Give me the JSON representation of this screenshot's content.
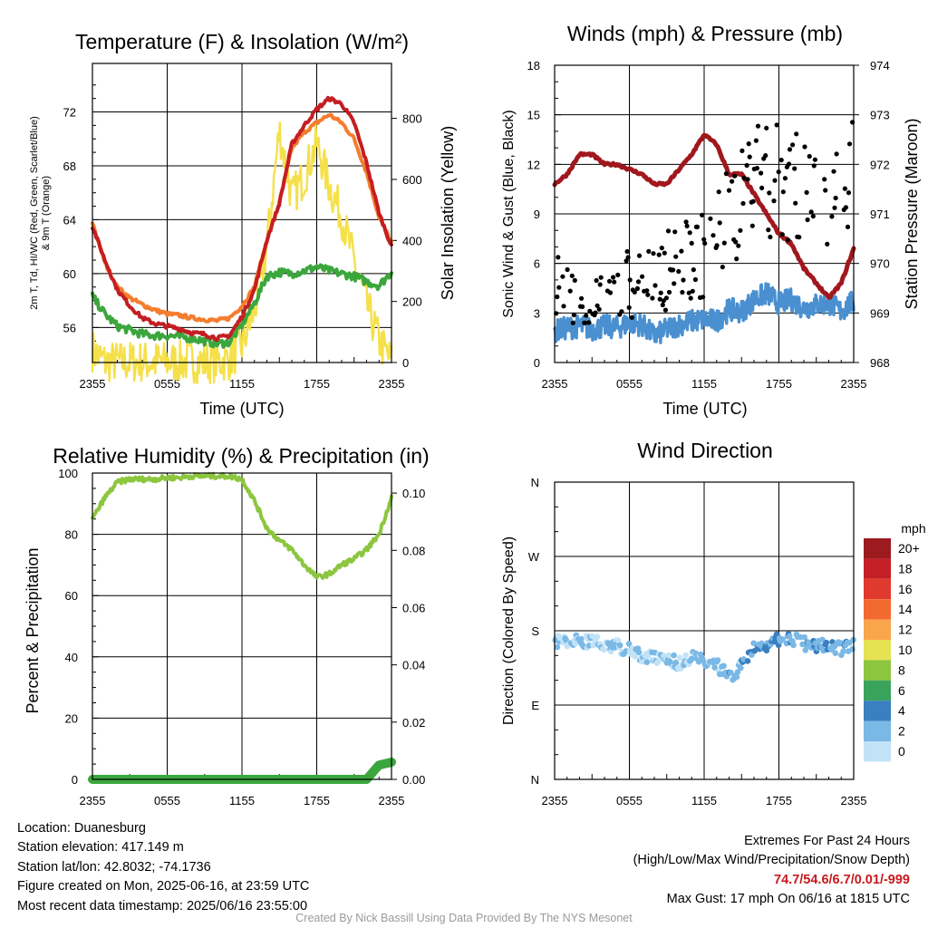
{
  "chart_data": [
    {
      "type": "line",
      "title": "Temperature (F) & Insolation (W/m²)",
      "xlabel": "Time (UTC)",
      "ylabel_lines": [
        "2m T, Td, HI/WC (Red, Green, Scarlet/Blue)",
        "& 9m T (Orange)"
      ],
      "ylabel_right": "Solar Insolation (Yellow)",
      "x_ticks": [
        "2355",
        "0555",
        "1155",
        "1755",
        "2355"
      ],
      "ylim": [
        53.4,
        75.6
      ],
      "y_ticks": [
        56,
        60,
        64,
        68,
        72
      ],
      "ylim_right": [
        0,
        980
      ],
      "y_ticks_right": [
        0,
        200,
        400,
        600,
        800
      ],
      "x_hours": [
        0,
        1,
        2,
        3,
        4,
        5,
        6,
        7,
        8,
        9,
        10,
        11,
        12,
        13,
        14,
        15,
        16,
        17,
        18,
        19,
        20,
        21,
        22,
        23,
        24
      ],
      "series": [
        {
          "key": "temperature_2m",
          "color": "#c41e22",
          "values": [
            63.5,
            61.0,
            58.8,
            57.6,
            56.7,
            56.3,
            56.1,
            55.9,
            55.6,
            55.5,
            55.2,
            55.4,
            56.8,
            58.8,
            62.5,
            65.2,
            69.6,
            71.0,
            72.2,
            73.0,
            72.6,
            71.2,
            68.2,
            64.5,
            62.0
          ]
        },
        {
          "key": "temperature_9m",
          "color": "#f47d2e",
          "values": [
            63.8,
            60.8,
            59.0,
            58.2,
            57.7,
            57.3,
            57.0,
            56.9,
            56.7,
            56.6,
            56.5,
            56.7,
            57.6,
            59.0,
            62.5,
            65.2,
            69.3,
            70.5,
            71.2,
            71.8,
            71.2,
            70.0,
            67.5,
            64.2,
            62.3
          ]
        },
        {
          "key": "dewpoint_2m",
          "color": "#3ba63c",
          "values": [
            58.3,
            57.0,
            56.1,
            55.8,
            55.5,
            55.4,
            55.4,
            55.3,
            55.2,
            55.0,
            54.8,
            54.9,
            56.2,
            57.8,
            59.8,
            60.1,
            60.0,
            60.2,
            60.5,
            60.2,
            60.0,
            59.8,
            59.4,
            59.1,
            60.1
          ]
        },
        {
          "key": "solar_insolation",
          "color": "#f5e04a",
          "axis": "right",
          "values": [
            40,
            2,
            2,
            2,
            2,
            2,
            2,
            2,
            2,
            2,
            2,
            10,
            55,
            170,
            380,
            760,
            540,
            610,
            720,
            580,
            480,
            330,
            190,
            70,
            2
          ]
        }
      ]
    },
    {
      "type": "scatter",
      "title": "Winds (mph) & Pressure (mb)",
      "xlabel": "Time (UTC)",
      "ylabel": "Sonic Wind & Gust (Blue, Black)",
      "ylabel_right": "Station Pressure (Maroon)",
      "x_ticks": [
        "2355",
        "0555",
        "1155",
        "1755",
        "2355"
      ],
      "ylim": [
        0,
        18
      ],
      "y_ticks": [
        0,
        3,
        6,
        9,
        12,
        15,
        18
      ],
      "ylim_right": [
        968,
        974
      ],
      "y_ticks_right": [
        968,
        969,
        970,
        971,
        972,
        973,
        974
      ],
      "x_hours": [
        0,
        1,
        2,
        3,
        4,
        5,
        6,
        7,
        8,
        9,
        10,
        11,
        12,
        13,
        14,
        15,
        16,
        17,
        18,
        19,
        20,
        21,
        22,
        23,
        24
      ],
      "series": [
        {
          "key": "sonic_wind",
          "color": "#4a90d0",
          "values": [
            1.9,
            2.1,
            2.2,
            2.0,
            2.2,
            2.1,
            2.4,
            2.3,
            1.6,
            2.0,
            2.3,
            2.5,
            2.6,
            2.5,
            3.2,
            3.1,
            3.8,
            4.2,
            3.6,
            3.8,
            3.3,
            3.5,
            3.6,
            3.1,
            3.7
          ]
        },
        {
          "key": "sonic_gust",
          "color": "#000000",
          "marker": "dot",
          "values": [
            4.5,
            4.0,
            3.5,
            3.2,
            3.5,
            4.3,
            4.9,
            5.3,
            4.8,
            5.6,
            5.9,
            6.3,
            6.5,
            7.5,
            8.9,
            9.5,
            11.5,
            10.8,
            11.0,
            10.5,
            10.2,
            9.8,
            10.5,
            9.0,
            11.2
          ]
        },
        {
          "key": "station_pressure",
          "color": "#a0181e",
          "axis": "right",
          "values": [
            971.6,
            971.8,
            972.2,
            972.2,
            972.0,
            972.0,
            971.9,
            971.8,
            971.6,
            971.6,
            971.9,
            972.2,
            972.6,
            972.4,
            971.8,
            971.8,
            971.4,
            971.0,
            970.6,
            970.4,
            969.9,
            969.6,
            969.3,
            969.6,
            970.3
          ]
        }
      ]
    },
    {
      "type": "line",
      "title": "Relative Humidity (%) & Precipitation (in)",
      "xlabel": "",
      "ylabel": "Percent & Precipitation",
      "x_ticks": [
        "2355",
        "0555",
        "1155",
        "1755",
        "2355"
      ],
      "ylim": [
        0,
        100
      ],
      "y_ticks": [
        0,
        20,
        40,
        60,
        80,
        100
      ],
      "ylim_right": [
        0,
        0.107
      ],
      "y_ticks_right": [
        "0.00",
        "0.02",
        "0.04",
        "0.06",
        "0.08",
        "0.10"
      ],
      "x_hours": [
        0,
        1,
        2,
        3,
        4,
        5,
        6,
        7,
        8,
        9,
        10,
        11,
        12,
        13,
        14,
        15,
        16,
        17,
        18,
        19,
        20,
        21,
        22,
        23,
        24
      ],
      "series": [
        {
          "key": "relative_humidity",
          "color": "#8cc63f",
          "values": [
            85,
            92,
            97,
            98,
            98,
            98,
            98.5,
            98.5,
            99,
            99,
            99,
            99,
            98,
            91,
            82,
            78,
            75,
            70,
            66,
            67,
            70,
            72,
            75,
            80,
            92
          ]
        },
        {
          "key": "precipitation",
          "color": "#3ba63c",
          "axis": "right",
          "values": [
            0,
            0,
            0,
            0,
            0,
            0,
            0,
            0,
            0,
            0,
            0,
            0,
            0,
            0,
            0,
            0,
            0,
            0,
            0,
            0,
            0,
            0,
            0,
            0.005,
            0.006
          ]
        }
      ]
    },
    {
      "type": "scatter",
      "title": "Wind Direction",
      "xlabel": "",
      "ylabel": "Direction (Colored By Speed)",
      "x_ticks": [
        "2355",
        "0555",
        "1155",
        "1755",
        "2355"
      ],
      "y_ticks": [
        "N",
        "E",
        "S",
        "W",
        "N"
      ],
      "ylim_deg": [
        0,
        360
      ],
      "x_hours": [
        0,
        1,
        2,
        3,
        4,
        5,
        6,
        7,
        8,
        9,
        10,
        11,
        12,
        13,
        14,
        15,
        16,
        17,
        18,
        19,
        20,
        21,
        22,
        23,
        24
      ],
      "direction_deg": [
        166,
        168,
        167,
        166,
        163,
        161,
        157,
        149,
        147,
        144,
        141,
        147,
        145,
        139,
        124,
        137,
        158,
        164,
        170,
        171,
        165,
        160,
        163,
        157,
        166
      ],
      "speed_mph": [
        1.9,
        2.1,
        2.2,
        2.0,
        2.2,
        2.1,
        2.4,
        2.3,
        1.6,
        2.0,
        2.3,
        2.5,
        2.6,
        2.5,
        3.2,
        3.1,
        3.8,
        4.2,
        3.6,
        3.8,
        3.3,
        3.5,
        3.6,
        3.1,
        3.7
      ],
      "legend": {
        "title": "mph",
        "bins": [
          {
            "label": "20+",
            "color": "#9b1b1e"
          },
          {
            "label": "18",
            "color": "#c31f25"
          },
          {
            "label": "16",
            "color": "#e03a2e"
          },
          {
            "label": "14",
            "color": "#f26a30"
          },
          {
            "label": "12",
            "color": "#f9a54b"
          },
          {
            "label": "10",
            "color": "#e6e353"
          },
          {
            "label": "8",
            "color": "#8cc63f"
          },
          {
            "label": "6",
            "color": "#3aa35b"
          },
          {
            "label": "4",
            "color": "#3a7fc0"
          },
          {
            "label": "2",
            "color": "#7ab8e6"
          },
          {
            "label": "0",
            "color": "#c2e3f7"
          }
        ]
      }
    }
  ],
  "footer": {
    "location": "Location: Duanesburg",
    "elevation": "Station elevation: 417.149 m",
    "latlon": "Station lat/lon: 42.8032; -74.1736",
    "created": "Figure created on Mon, 2025-06-16, at 23:59 UTC",
    "recent": "Most recent data timestamp: 2025/06/16 23:55:00",
    "extremes_title": "Extremes For Past 24 Hours",
    "extremes_legend": "(High/Low/Max Wind/Precipitation/Snow Depth)",
    "extremes_values": "74.7/54.6/6.7/0.01/-999",
    "max_gust": "Max Gust: 17 mph On 06/16 at 1815 UTC",
    "credit": "Created By Nick Bassill Using Data Provided By The NYS Mesonet"
  }
}
